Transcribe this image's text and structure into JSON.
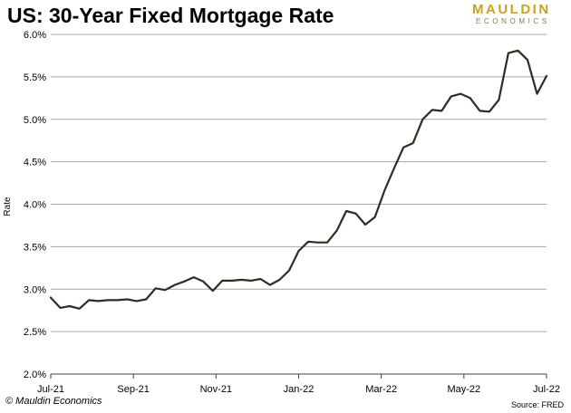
{
  "header": {
    "title": "US: 30-Year Fixed Mortgage Rate",
    "logo_top": "MAULDIN",
    "logo_bottom": "ECONOMICS"
  },
  "footer": {
    "credit": "© Mauldin Economics",
    "source": "Source: FRED"
  },
  "colors": {
    "line": "#2b2f20",
    "grid": "#a6a6a6",
    "axis": "#404040",
    "brand_gold": "#c9a227"
  },
  "chart_data": {
    "type": "line",
    "title": "US: 30-Year Fixed Mortgage Rate",
    "xlabel": "",
    "ylabel": "Rate",
    "ylim": [
      2.0,
      6.0
    ],
    "yticks": [
      "2.0%",
      "2.5%",
      "3.0%",
      "3.5%",
      "4.0%",
      "4.5%",
      "5.0%",
      "5.5%",
      "6.0%"
    ],
    "xticks": [
      "Jul-21",
      "Sep-21",
      "Nov-21",
      "Jan-22",
      "Mar-22",
      "May-22",
      "Jul-22"
    ],
    "grid": true,
    "series": [
      {
        "values": [
          2.9,
          2.78,
          2.8,
          2.77,
          2.87,
          2.86,
          2.87,
          2.87,
          2.88,
          2.86,
          2.88,
          3.01,
          2.99,
          3.05,
          3.09,
          3.14,
          3.09,
          2.98,
          3.1,
          3.1,
          3.11,
          3.1,
          3.12,
          3.05,
          3.11,
          3.22,
          3.45,
          3.56,
          3.55,
          3.55,
          3.69,
          3.92,
          3.89,
          3.76,
          3.85,
          4.16,
          4.42,
          4.67,
          4.72,
          5.0,
          5.11,
          5.1,
          5.27,
          5.3,
          5.25,
          5.1,
          5.09,
          5.23,
          5.78,
          5.81,
          5.7,
          5.3,
          5.51
        ]
      }
    ]
  }
}
